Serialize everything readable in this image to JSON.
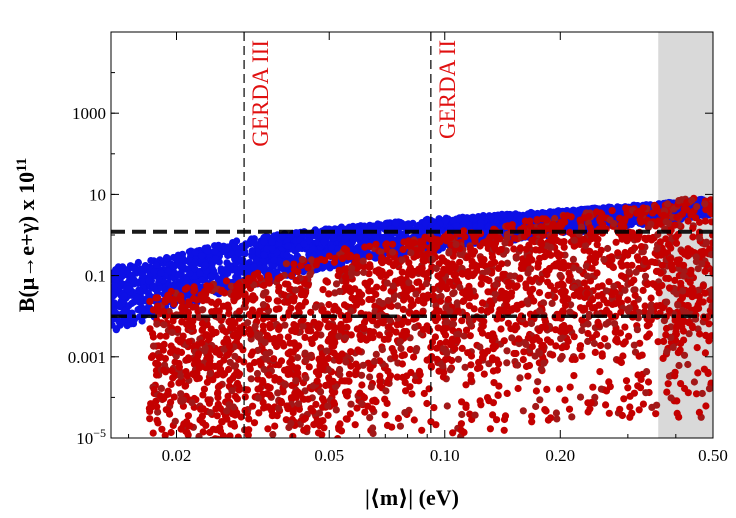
{
  "chart_data": {
    "type": "scatter",
    "title": "",
    "xlabel": "|⟨m⟩| (eV)",
    "ylabel_base": "B(μ→e+γ) x 10",
    "ylabel_exp": "11",
    "xscale": "log",
    "yscale": "log",
    "xlim": [
      0.0135,
      0.5
    ],
    "ylim": [
      1e-05,
      100000
    ],
    "x_ticks": [
      {
        "value": 0.02,
        "label": "0.02"
      },
      {
        "value": 0.05,
        "label": "0.05"
      },
      {
        "value": 0.1,
        "label": "0.10"
      },
      {
        "value": 0.2,
        "label": "0.20"
      },
      {
        "value": 0.5,
        "label": "0.50"
      }
    ],
    "y_ticks": [
      {
        "value": 1e-05,
        "label_base": "10",
        "label_exp": "−5"
      },
      {
        "value": 0.001,
        "label": "0.001"
      },
      {
        "value": 0.1,
        "label": "0.1"
      },
      {
        "value": 10,
        "label": "10"
      },
      {
        "value": 1000,
        "label": "1000"
      }
    ],
    "vertical_lines": [
      {
        "x": 0.03,
        "label": "GERDA III",
        "style": "dashed"
      },
      {
        "x": 0.092,
        "label": "GERDA II",
        "style": "dashed"
      }
    ],
    "horizontal_lines": [
      {
        "y": 1.2,
        "style": "dashed"
      },
      {
        "y": 0.01,
        "style": "dash-dot"
      }
    ],
    "excluded_region": {
      "x_from": 0.36,
      "x_to": 0.5,
      "color": "#d9d9d9"
    },
    "series": [
      {
        "name": "blue band",
        "color": "#0d10e6",
        "lower_edge": [
          [
            0.0135,
            0.004
          ],
          [
            0.03,
            0.05
          ],
          [
            0.05,
            0.15
          ],
          [
            0.092,
            0.4
          ],
          [
            0.2,
            1.0
          ],
          [
            0.36,
            2.0
          ],
          [
            0.5,
            3.0
          ]
        ],
        "upper_edge": [
          [
            0.0135,
            0.15
          ],
          [
            0.03,
            0.8
          ],
          [
            0.05,
            1.5
          ],
          [
            0.092,
            2.5
          ],
          [
            0.2,
            4.0
          ],
          [
            0.36,
            6.0
          ],
          [
            0.5,
            8.0
          ]
        ]
      },
      {
        "name": "red band",
        "color": "#c40000",
        "lower_edge": [
          [
            0.017,
            1e-05
          ],
          [
            0.05,
            1e-05
          ],
          [
            0.06,
            3e-05
          ],
          [
            0.092,
            0.0002
          ],
          [
            0.15,
            0.0005
          ],
          [
            0.3,
            0.001
          ],
          [
            0.5,
            0.001
          ]
        ],
        "upper_edge": [
          [
            0.0135,
            0.02
          ],
          [
            0.03,
            0.1
          ],
          [
            0.05,
            0.4
          ],
          [
            0.092,
            1.0
          ],
          [
            0.2,
            3.0
          ],
          [
            0.36,
            6.0
          ],
          [
            0.5,
            10.0
          ]
        ]
      }
    ]
  },
  "colors": {
    "blue": "#0d10e6",
    "red": "#c40000",
    "dark_red": "#a31818",
    "axis": "#000000",
    "label_red": "#e01010"
  }
}
